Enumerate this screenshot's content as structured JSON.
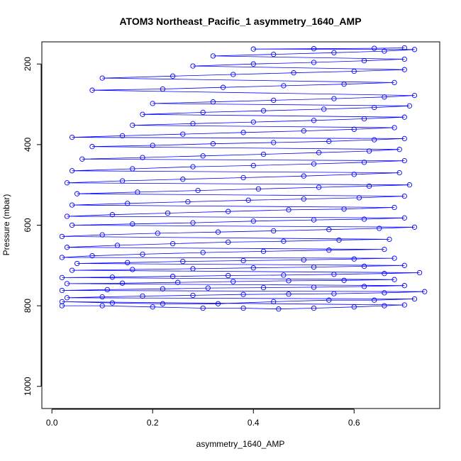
{
  "chart_data": {
    "type": "scatter",
    "title": "ATOM3 Northeast_Pacific_1 asymmetry_1640_AMP",
    "xlabel": "asymmetry_1640_AMP",
    "ylabel": "Pressure (mbar)",
    "xlim": [
      -0.02,
      0.77
    ],
    "ylim": [
      1055,
      145
    ],
    "y_reversed": true,
    "x_ticks": [
      0.0,
      0.2,
      0.4,
      0.6
    ],
    "x_tick_labels": [
      "0.0",
      "0.2",
      "0.4",
      "0.6"
    ],
    "y_ticks": [
      200,
      400,
      600,
      800,
      1000
    ],
    "y_tick_labels": [
      "200",
      "400",
      "600",
      "800",
      "1000"
    ],
    "grid": false,
    "marker": "open-circle",
    "connected_by_lines": true,
    "series": [
      {
        "color": "#0000ff",
        "points": [
          [
            0.02,
            800
          ],
          [
            0.1,
            800
          ],
          [
            0.2,
            803
          ],
          [
            0.3,
            806
          ],
          [
            0.38,
            806
          ],
          [
            0.45,
            808
          ],
          [
            0.52,
            806
          ],
          [
            0.6,
            803
          ],
          [
            0.66,
            800
          ],
          [
            0.7,
            798
          ],
          [
            0.02,
            790
          ],
          [
            0.12,
            793
          ],
          [
            0.22,
            795
          ],
          [
            0.33,
            795
          ],
          [
            0.44,
            790
          ],
          [
            0.55,
            786
          ],
          [
            0.64,
            786
          ],
          [
            0.72,
            783
          ],
          [
            0.03,
            780
          ],
          [
            0.1,
            778
          ],
          [
            0.18,
            776
          ],
          [
            0.28,
            774
          ],
          [
            0.38,
            772
          ],
          [
            0.47,
            771
          ],
          [
            0.56,
            770
          ],
          [
            0.66,
            768
          ],
          [
            0.74,
            765
          ],
          [
            0.02,
            762
          ],
          [
            0.11,
            760
          ],
          [
            0.22,
            758
          ],
          [
            0.31,
            756
          ],
          [
            0.42,
            755
          ],
          [
            0.52,
            754
          ],
          [
            0.62,
            752
          ],
          [
            0.7,
            750
          ],
          [
            0.03,
            745
          ],
          [
            0.14,
            744
          ],
          [
            0.25,
            742
          ],
          [
            0.36,
            740
          ],
          [
            0.47,
            738
          ],
          [
            0.58,
            737
          ],
          [
            0.68,
            735
          ],
          [
            0.02,
            730
          ],
          [
            0.12,
            729
          ],
          [
            0.24,
            727
          ],
          [
            0.35,
            725
          ],
          [
            0.46,
            724
          ],
          [
            0.56,
            722
          ],
          [
            0.66,
            720
          ],
          [
            0.73,
            718
          ],
          [
            0.04,
            712
          ],
          [
            0.16,
            710
          ],
          [
            0.28,
            708
          ],
          [
            0.4,
            706
          ],
          [
            0.52,
            704
          ],
          [
            0.62,
            702
          ],
          [
            0.7,
            700
          ],
          [
            0.05,
            695
          ],
          [
            0.15,
            693
          ],
          [
            0.26,
            690
          ],
          [
            0.38,
            688
          ],
          [
            0.5,
            686
          ],
          [
            0.6,
            684
          ],
          [
            0.68,
            682
          ],
          [
            0.02,
            680
          ],
          [
            0.08,
            676
          ],
          [
            0.18,
            672
          ],
          [
            0.3,
            668
          ],
          [
            0.42,
            665
          ],
          [
            0.55,
            662
          ],
          [
            0.66,
            660
          ],
          [
            0.03,
            655
          ],
          [
            0.13,
            650
          ],
          [
            0.24,
            646
          ],
          [
            0.35,
            642
          ],
          [
            0.46,
            640
          ],
          [
            0.57,
            637
          ],
          [
            0.67,
            635
          ],
          [
            0.02,
            628
          ],
          [
            0.1,
            624
          ],
          [
            0.21,
            620
          ],
          [
            0.33,
            617
          ],
          [
            0.44,
            614
          ],
          [
            0.55,
            611
          ],
          [
            0.65,
            608
          ],
          [
            0.72,
            605
          ],
          [
            0.04,
            600
          ],
          [
            0.16,
            597
          ],
          [
            0.28,
            594
          ],
          [
            0.4,
            590
          ],
          [
            0.52,
            587
          ],
          [
            0.62,
            585
          ],
          [
            0.7,
            582
          ],
          [
            0.03,
            578
          ],
          [
            0.12,
            574
          ],
          [
            0.23,
            570
          ],
          [
            0.35,
            566
          ],
          [
            0.47,
            562
          ],
          [
            0.58,
            560
          ],
          [
            0.68,
            556
          ],
          [
            0.04,
            550
          ],
          [
            0.15,
            546
          ],
          [
            0.27,
            542
          ],
          [
            0.39,
            538
          ],
          [
            0.5,
            535
          ],
          [
            0.61,
            532
          ],
          [
            0.7,
            528
          ],
          [
            0.05,
            522
          ],
          [
            0.17,
            518
          ],
          [
            0.29,
            514
          ],
          [
            0.41,
            510
          ],
          [
            0.53,
            506
          ],
          [
            0.63,
            503
          ],
          [
            0.71,
            500
          ],
          [
            0.03,
            495
          ],
          [
            0.14,
            490
          ],
          [
            0.26,
            486
          ],
          [
            0.38,
            482
          ],
          [
            0.5,
            478
          ],
          [
            0.6,
            474
          ],
          [
            0.69,
            470
          ],
          [
            0.04,
            465
          ],
          [
            0.16,
            460
          ],
          [
            0.28,
            455
          ],
          [
            0.4,
            452
          ],
          [
            0.52,
            448
          ],
          [
            0.62,
            444
          ],
          [
            0.7,
            440
          ],
          [
            0.06,
            436
          ],
          [
            0.18,
            432
          ],
          [
            0.3,
            428
          ],
          [
            0.42,
            424
          ],
          [
            0.53,
            420
          ],
          [
            0.63,
            416
          ],
          [
            0.69,
            412
          ],
          [
            0.08,
            405
          ],
          [
            0.2,
            402
          ],
          [
            0.32,
            398
          ],
          [
            0.44,
            395
          ],
          [
            0.55,
            392
          ],
          [
            0.64,
            388
          ],
          [
            0.7,
            385
          ],
          [
            0.04,
            382
          ],
          [
            0.14,
            378
          ],
          [
            0.26,
            374
          ],
          [
            0.38,
            370
          ],
          [
            0.5,
            366
          ],
          [
            0.6,
            362
          ],
          [
            0.68,
            358
          ],
          [
            0.16,
            352
          ],
          [
            0.28,
            348
          ],
          [
            0.4,
            344
          ],
          [
            0.52,
            340
          ],
          [
            0.62,
            336
          ],
          [
            0.7,
            332
          ],
          [
            0.18,
            325
          ],
          [
            0.3,
            320
          ],
          [
            0.42,
            316
          ],
          [
            0.54,
            312
          ],
          [
            0.64,
            308
          ],
          [
            0.71,
            304
          ],
          [
            0.2,
            298
          ],
          [
            0.32,
            294
          ],
          [
            0.44,
            290
          ],
          [
            0.56,
            286
          ],
          [
            0.66,
            282
          ],
          [
            0.72,
            278
          ],
          [
            0.08,
            265
          ],
          [
            0.22,
            262
          ],
          [
            0.34,
            258
          ],
          [
            0.46,
            254
          ],
          [
            0.58,
            250
          ],
          [
            0.68,
            246
          ],
          [
            0.1,
            235
          ],
          [
            0.24,
            230
          ],
          [
            0.36,
            226
          ],
          [
            0.48,
            222
          ],
          [
            0.6,
            218
          ],
          [
            0.7,
            214
          ],
          [
            0.28,
            205
          ],
          [
            0.4,
            200
          ],
          [
            0.52,
            196
          ],
          [
            0.62,
            192
          ],
          [
            0.7,
            188
          ],
          [
            0.32,
            180
          ],
          [
            0.44,
            176
          ],
          [
            0.56,
            172
          ],
          [
            0.66,
            168
          ],
          [
            0.72,
            164
          ],
          [
            0.4,
            163
          ],
          [
            0.52,
            162
          ],
          [
            0.64,
            161
          ],
          [
            0.7,
            160
          ]
        ]
      }
    ]
  }
}
